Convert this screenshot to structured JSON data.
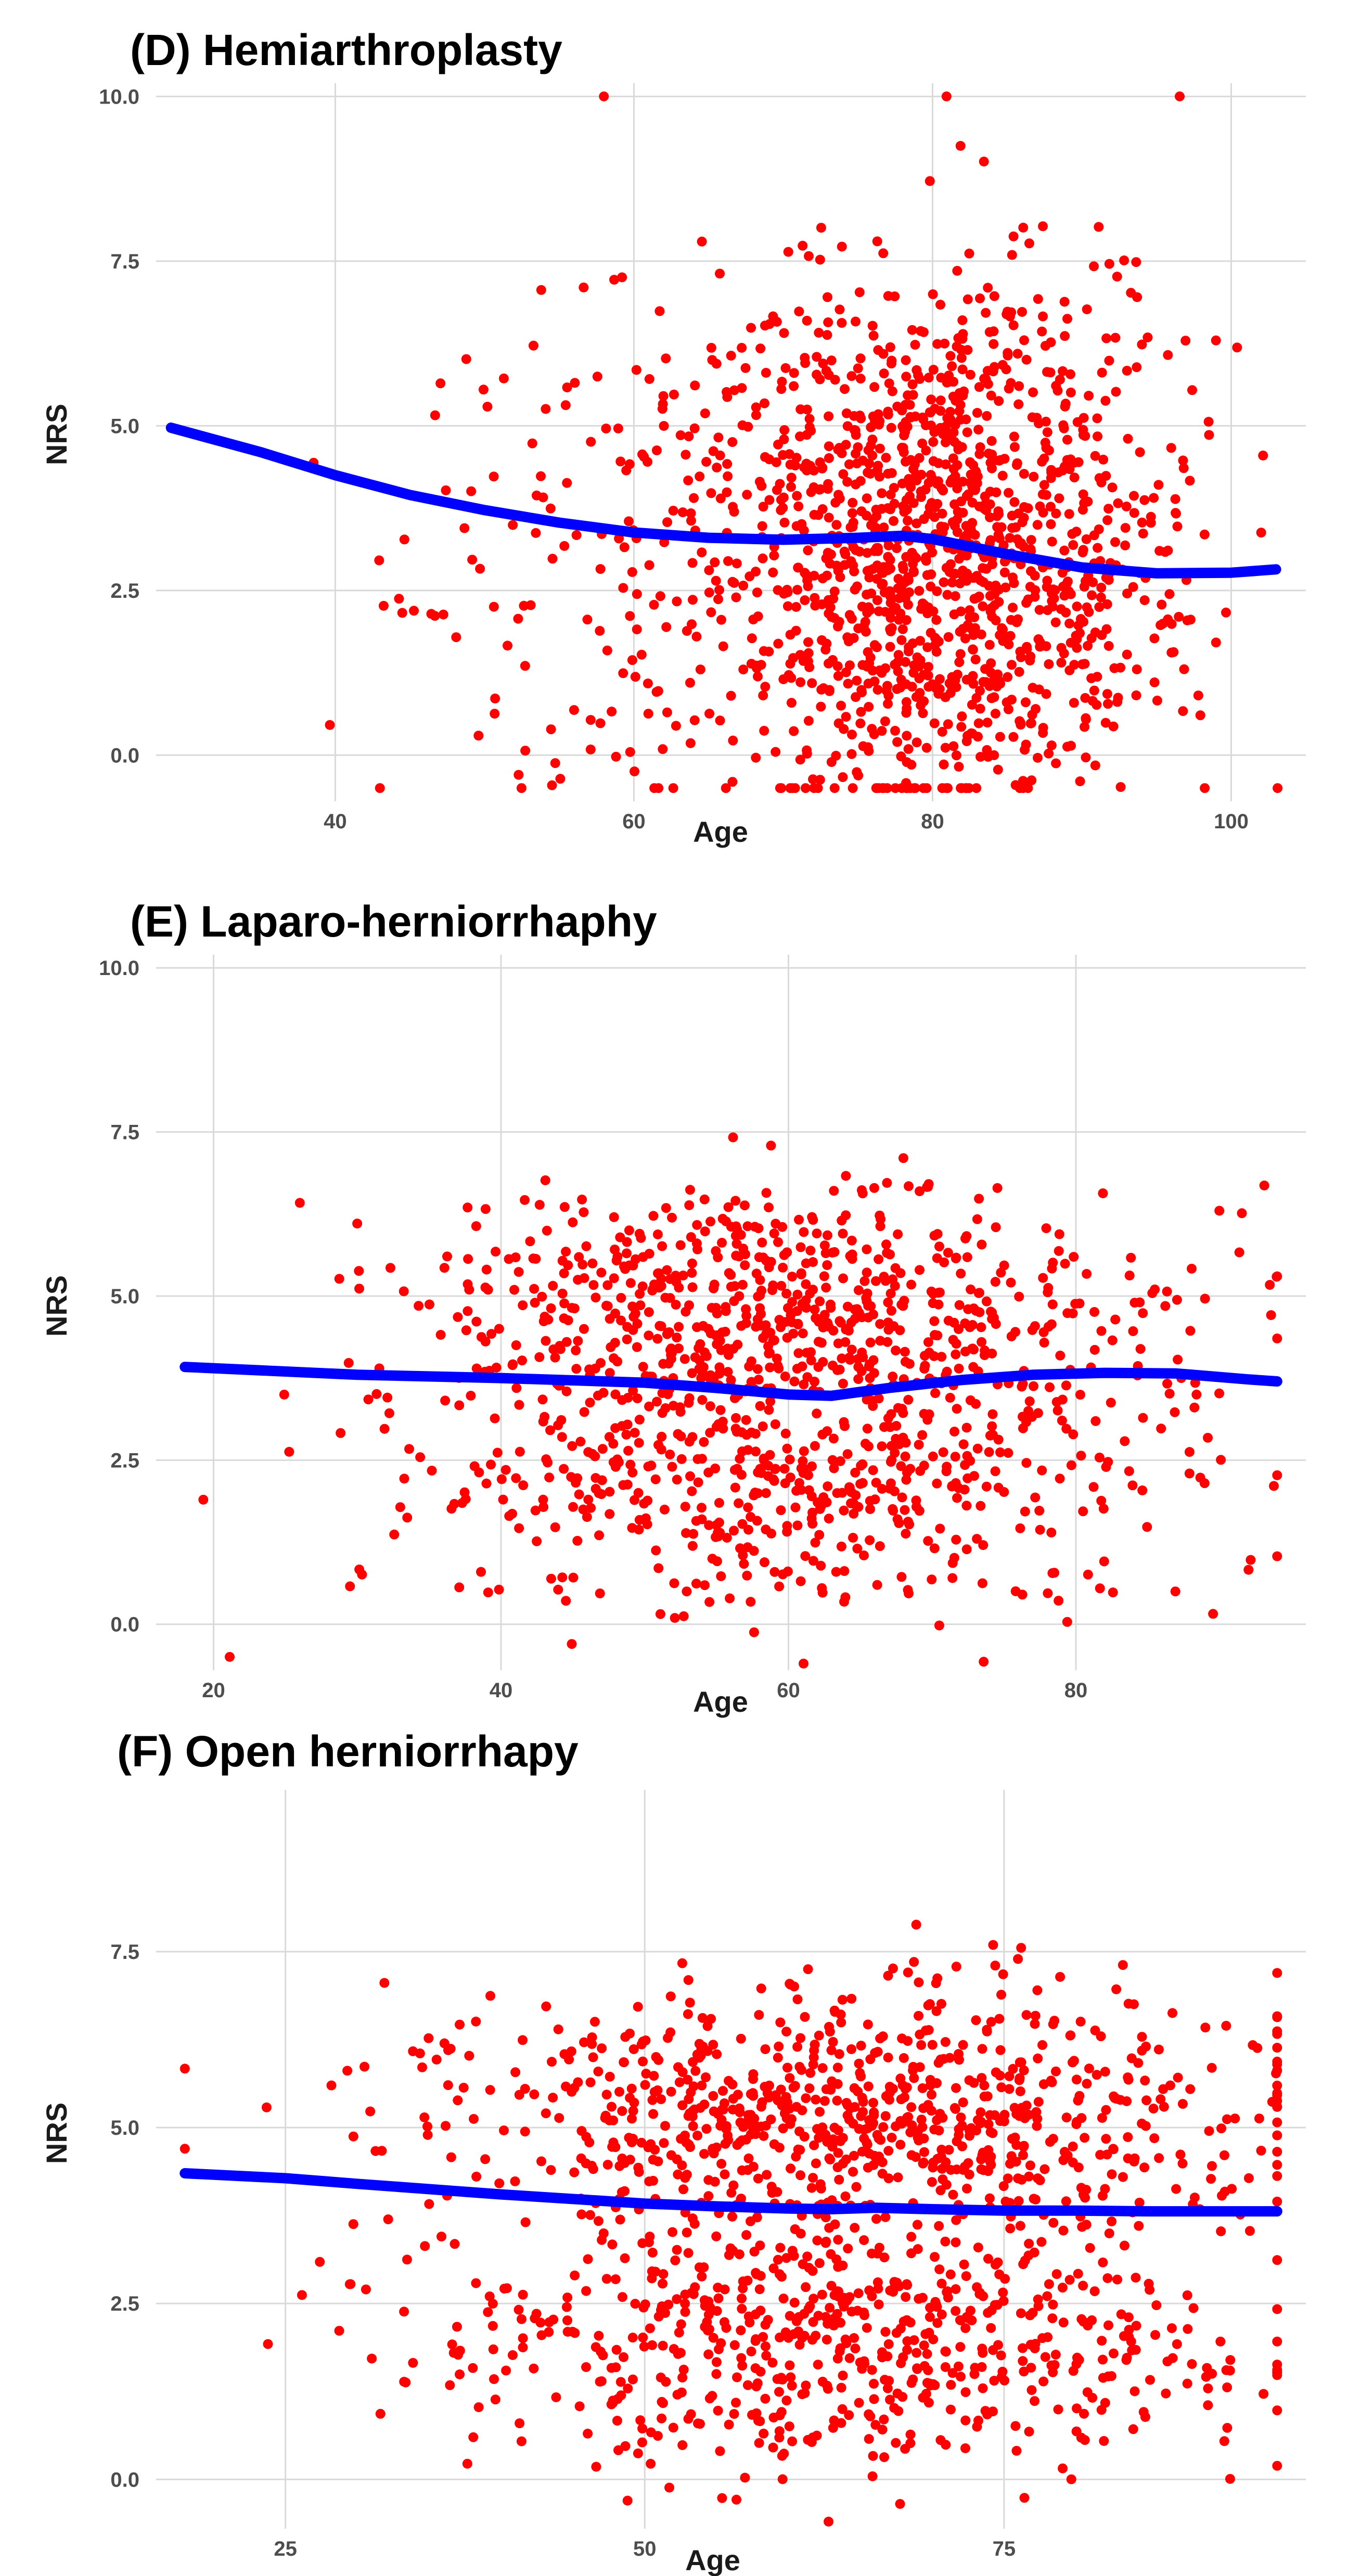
{
  "figure": {
    "colors": {
      "points": "#ff0000",
      "smooth": "#0000ff",
      "grid": "#d9d9d9",
      "ticks": "#4d4d4d"
    }
  },
  "chart_data": [
    {
      "type": "scatter",
      "title": "(D) Hemiarthroplasty",
      "xlabel": "Age",
      "ylabel": "NRS",
      "xlim": [
        28,
        105
      ],
      "ylim": [
        -0.7,
        10.2
      ],
      "xticks": [
        40,
        60,
        80,
        100
      ],
      "xtick_labels": [
        "40",
        "60",
        "80",
        "100"
      ],
      "yticks": [
        0,
        2.5,
        5,
        7.5,
        10
      ],
      "ytick_labels": [
        "0.0",
        "2.5",
        "5.0",
        "7.5",
        "10.0"
      ],
      "grid": true,
      "sample": {
        "n": 1500,
        "seed": 11,
        "clusters": [
          {
            "weight": 0.86,
            "x_mean": 81,
            "x_sd": 7.5,
            "x_min": 55,
            "x_max": 104,
            "y_mean": 3.2,
            "y_sd": 2.0
          },
          {
            "weight": 0.14,
            "x_mean": 62,
            "x_sd": 10,
            "x_min": 29,
            "x_max": 104,
            "y_mean": 3.6,
            "y_sd": 2.2
          }
        ],
        "y_min": -0.5,
        "y_max": 10
      },
      "smooth": [
        [
          29,
          4.97
        ],
        [
          35,
          4.6
        ],
        [
          40,
          4.25
        ],
        [
          45,
          3.95
        ],
        [
          50,
          3.72
        ],
        [
          55,
          3.53
        ],
        [
          60,
          3.38
        ],
        [
          65,
          3.3
        ],
        [
          70,
          3.27
        ],
        [
          75,
          3.3
        ],
        [
          78,
          3.33
        ],
        [
          80,
          3.28
        ],
        [
          85,
          3.05
        ],
        [
          90,
          2.85
        ],
        [
          95,
          2.76
        ],
        [
          100,
          2.77
        ],
        [
          103,
          2.82
        ]
      ]
    },
    {
      "type": "scatter",
      "title": "(E) Laparo-herniorrhaphy",
      "xlabel": "Age",
      "ylabel": "NRS",
      "xlim": [
        16,
        96
      ],
      "ylim": [
        -0.7,
        10.2
      ],
      "xticks": [
        20,
        40,
        60,
        80
      ],
      "xtick_labels": [
        "20",
        "40",
        "60",
        "80"
      ],
      "yticks": [
        0,
        2.5,
        5,
        7.5,
        10
      ],
      "ytick_labels": [
        "0.0",
        "2.5",
        "5.0",
        "7.5",
        "10.0"
      ],
      "grid": true,
      "sample": {
        "n": 1200,
        "seed": 23,
        "clusters": [
          {
            "weight": 0.62,
            "x_mean": 60,
            "x_sd": 13,
            "x_min": 18,
            "x_max": 94,
            "y_mean": 4.6,
            "y_sd": 1.0
          },
          {
            "weight": 0.38,
            "x_mean": 60,
            "x_sd": 14,
            "x_min": 18,
            "x_max": 94,
            "y_mean": 2.0,
            "y_sd": 1.0
          }
        ],
        "y_min": -0.6,
        "y_max": 9.6
      },
      "smooth": [
        [
          18,
          3.92
        ],
        [
          25,
          3.85
        ],
        [
          30,
          3.8
        ],
        [
          40,
          3.75
        ],
        [
          50,
          3.68
        ],
        [
          55,
          3.6
        ],
        [
          60,
          3.5
        ],
        [
          63,
          3.48
        ],
        [
          67,
          3.6
        ],
        [
          72,
          3.72
        ],
        [
          77,
          3.8
        ],
        [
          82,
          3.83
        ],
        [
          87,
          3.82
        ],
        [
          92,
          3.73
        ],
        [
          94,
          3.7
        ]
      ]
    },
    {
      "type": "scatter",
      "title": "(F) Open herniorrhapy",
      "xlabel": "Age",
      "ylabel": "NRS",
      "xlim": [
        16,
        96
      ],
      "ylim": [
        -0.7,
        9.8
      ],
      "xticks": [
        25,
        50,
        75
      ],
      "xtick_labels": [
        "25",
        "50",
        "75"
      ],
      "yticks": [
        0,
        2.5,
        5,
        7.5
      ],
      "ytick_labels": [
        "0.0",
        "2.5",
        "5.0",
        "7.5"
      ],
      "grid": true,
      "sample": {
        "n": 1500,
        "seed": 37,
        "clusters": [
          {
            "weight": 0.55,
            "x_mean": 64,
            "x_sd": 15,
            "x_min": 18,
            "x_max": 94,
            "y_mean": 5.2,
            "y_sd": 0.9
          },
          {
            "weight": 0.45,
            "x_mean": 64,
            "x_sd": 14,
            "x_min": 18,
            "x_max": 94,
            "y_mean": 2.0,
            "y_sd": 1.0
          }
        ],
        "y_min": -0.6,
        "y_max": 9.4
      },
      "smooth": [
        [
          18,
          4.35
        ],
        [
          25,
          4.28
        ],
        [
          30,
          4.2
        ],
        [
          40,
          4.05
        ],
        [
          50,
          3.92
        ],
        [
          55,
          3.88
        ],
        [
          60,
          3.85
        ],
        [
          63,
          3.84
        ],
        [
          66,
          3.86
        ],
        [
          70,
          3.84
        ],
        [
          75,
          3.82
        ],
        [
          80,
          3.82
        ],
        [
          85,
          3.81
        ],
        [
          90,
          3.81
        ],
        [
          94,
          3.81
        ]
      ]
    }
  ]
}
